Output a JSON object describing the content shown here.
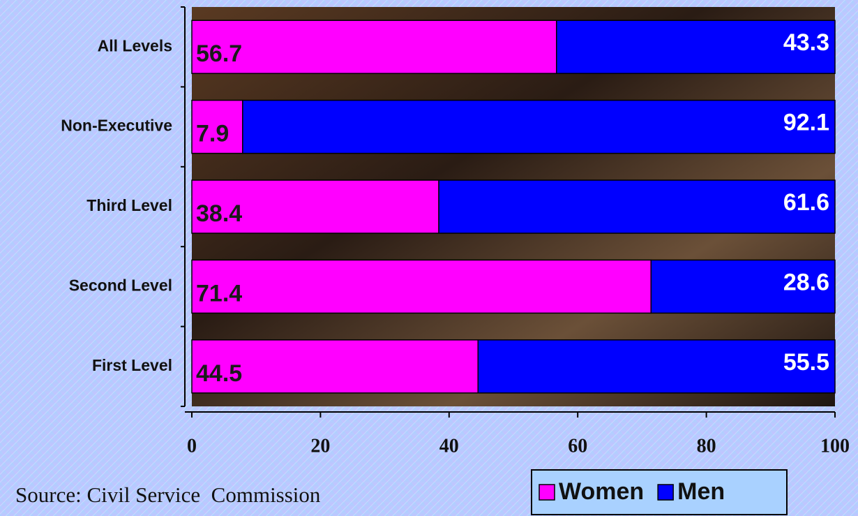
{
  "chart_data": {
    "type": "stacked-bar-horizontal",
    "categories": [
      "All Levels",
      "Non-Executive",
      "Third Level",
      "Second Level",
      "First Level"
    ],
    "series": [
      {
        "name": "Women",
        "color": "#ff00ff",
        "values": [
          56.7,
          7.9,
          38.4,
          71.4,
          44.5
        ]
      },
      {
        "name": "Men",
        "color": "#0000ff",
        "values": [
          43.3,
          92.1,
          61.6,
          28.6,
          55.5
        ]
      }
    ],
    "xlim": [
      0,
      100
    ],
    "xticks": [
      0,
      20,
      40,
      60,
      80,
      100
    ],
    "source": "Source: Civil Service  Commission",
    "legend": "bottom-right"
  }
}
